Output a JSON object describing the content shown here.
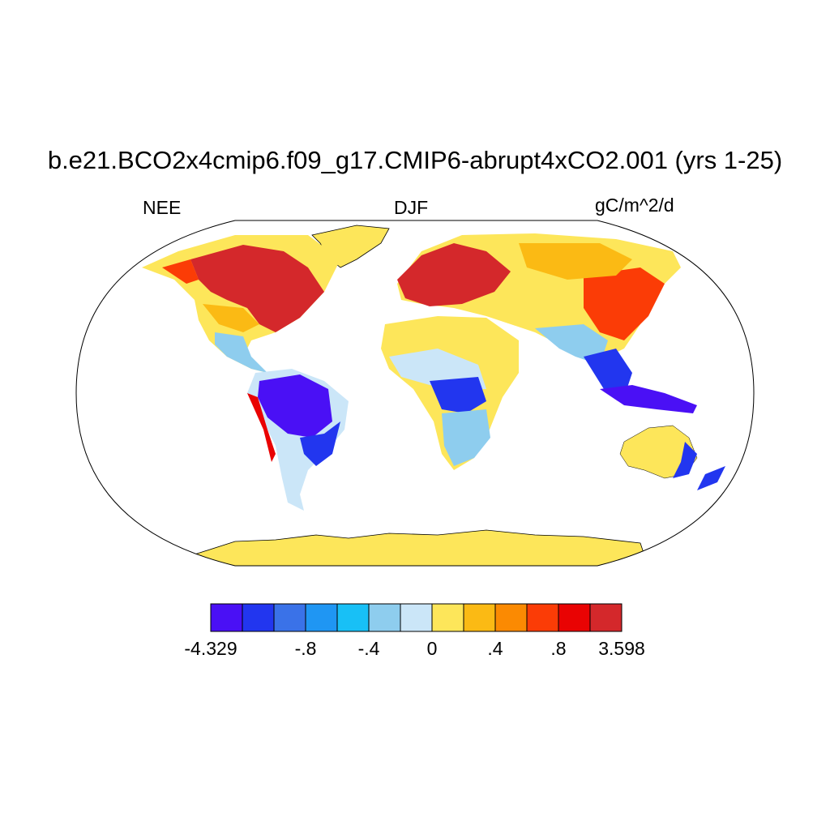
{
  "title": "b.e21.BCO2x4cmip6.f09_g17.CMIP6-abrupt4xCO2.001 (yrs 1-25)",
  "left_label": "NEE",
  "center_label": "DJF",
  "right_label": "gC/m^2/d",
  "colorbar": {
    "colors": [
      "#4a10f5",
      "#2236ef",
      "#3a72e8",
      "#1f96f3",
      "#18c0f6",
      "#8ecdee",
      "#cbe6f8",
      "#fde65a",
      "#fbba14",
      "#fb8a02",
      "#fb3c06",
      "#e90303",
      "#d4282b"
    ],
    "labels": [
      {
        "text": "-4.329",
        "boundary": 0
      },
      {
        "text": "-.8",
        "boundary": 3
      },
      {
        "text": "-.4",
        "boundary": 5
      },
      {
        "text": "0",
        "boundary": 7
      },
      {
        "text": ".4",
        "boundary": 9
      },
      {
        "text": ".8",
        "boundary": 11
      },
      {
        "text": "3.598",
        "boundary": 13
      }
    ]
  }
}
